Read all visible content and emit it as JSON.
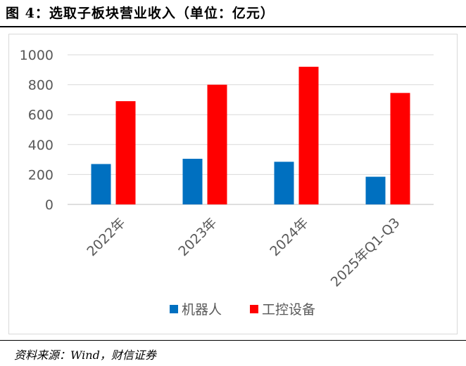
{
  "figure_title": "图 4：选取子板块营业收入（单位：亿元）",
  "source_text": "资料来源：Wind，财信证券",
  "chart_data": {
    "type": "bar",
    "categories": [
      "2022年",
      "2023年",
      "2024年",
      "2025年Q1-Q3"
    ],
    "series": [
      {
        "name": "机器人",
        "values": [
          270,
          305,
          285,
          185
        ],
        "color": "#0070C0"
      },
      {
        "name": "工控设备",
        "values": [
          690,
          800,
          920,
          745
        ],
        "color": "#FF0000"
      }
    ],
    "ylim": [
      0,
      1000
    ],
    "yticks": [
      "0",
      "200",
      "400",
      "600",
      "800",
      "1000"
    ],
    "grid": true,
    "legend_position": "bottom"
  }
}
